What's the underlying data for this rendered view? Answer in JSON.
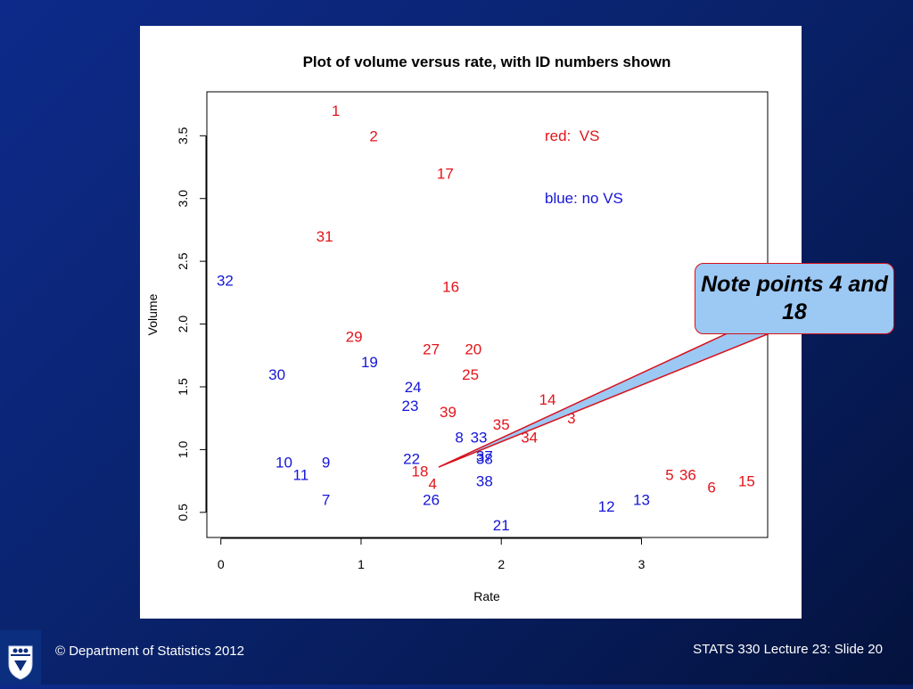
{
  "footer": {
    "copyright": "© Department of Statistics 2012",
    "slide_label": "STATS 330 Lecture 23: Slide 20"
  },
  "callout": {
    "text": "Note points 4 and 18"
  },
  "colors": {
    "red": "#e3141b",
    "blue": "#1515d8",
    "callout_fill": "#9cc8f4"
  },
  "icons": {
    "logo": "university-crest-icon"
  },
  "chart_data": {
    "type": "scatter",
    "title": "Plot of volume versus rate, with ID numbers shown",
    "xlabel": "Rate",
    "ylabel": "Volume",
    "xlim": [
      -0.1,
      3.9
    ],
    "ylim": [
      0.3,
      3.85
    ],
    "xticks": [
      "0",
      "1",
      "2",
      "3"
    ],
    "yticks": [
      "0.5",
      "1.0",
      "1.5",
      "2.0",
      "2.5",
      "3.0",
      "3.5"
    ],
    "legend": {
      "red_label": "red:  VS",
      "blue_label": "blue: no VS"
    },
    "series": [
      {
        "color": "red",
        "points": [
          {
            "id": "1",
            "x": 0.82,
            "y": 3.7
          },
          {
            "id": "2",
            "x": 1.09,
            "y": 3.5
          },
          {
            "id": "17",
            "x": 1.6,
            "y": 3.2
          },
          {
            "id": "31",
            "x": 0.74,
            "y": 2.7
          },
          {
            "id": "16",
            "x": 1.64,
            "y": 2.3
          },
          {
            "id": "29",
            "x": 0.95,
            "y": 1.9
          },
          {
            "id": "27",
            "x": 1.5,
            "y": 1.8
          },
          {
            "id": "20",
            "x": 1.8,
            "y": 1.8
          },
          {
            "id": "25",
            "x": 1.78,
            "y": 1.6
          },
          {
            "id": "14",
            "x": 2.33,
            "y": 1.4
          },
          {
            "id": "39",
            "x": 1.62,
            "y": 1.3
          },
          {
            "id": "3",
            "x": 2.5,
            "y": 1.25
          },
          {
            "id": "35",
            "x": 2.0,
            "y": 1.2
          },
          {
            "id": "34",
            "x": 2.2,
            "y": 1.1
          },
          {
            "id": "18",
            "x": 1.42,
            "y": 0.83
          },
          {
            "id": "4",
            "x": 1.51,
            "y": 0.73
          },
          {
            "id": "5",
            "x": 3.2,
            "y": 0.8
          },
          {
            "id": "36",
            "x": 3.33,
            "y": 0.8
          },
          {
            "id": "6",
            "x": 3.5,
            "y": 0.7
          },
          {
            "id": "15",
            "x": 3.75,
            "y": 0.75
          }
        ]
      },
      {
        "color": "blue",
        "points": [
          {
            "id": "32",
            "x": 0.03,
            "y": 2.35
          },
          {
            "id": "19",
            "x": 1.06,
            "y": 1.7
          },
          {
            "id": "30",
            "x": 0.4,
            "y": 1.6
          },
          {
            "id": "24",
            "x": 1.37,
            "y": 1.5
          },
          {
            "id": "23",
            "x": 1.35,
            "y": 1.35
          },
          {
            "id": "8",
            "x": 1.7,
            "y": 1.1
          },
          {
            "id": "33",
            "x": 1.84,
            "y": 1.1
          },
          {
            "id": "22",
            "x": 1.36,
            "y": 0.93
          },
          {
            "id": "37",
            "x": 1.88,
            "y": 0.95
          },
          {
            "id": "38",
            "x": 1.88,
            "y": 0.93
          },
          {
            "id": "10",
            "x": 0.45,
            "y": 0.9
          },
          {
            "id": "9",
            "x": 0.75,
            "y": 0.9
          },
          {
            "id": "11",
            "x": 0.57,
            "y": 0.8
          },
          {
            "id": "38",
            "x": 1.88,
            "y": 0.75
          },
          {
            "id": "7",
            "x": 0.75,
            "y": 0.6
          },
          {
            "id": "26",
            "x": 1.5,
            "y": 0.6
          },
          {
            "id": "21",
            "x": 2.0,
            "y": 0.4
          },
          {
            "id": "12",
            "x": 2.75,
            "y": 0.55
          },
          {
            "id": "13",
            "x": 3.0,
            "y": 0.6
          }
        ]
      }
    ]
  }
}
